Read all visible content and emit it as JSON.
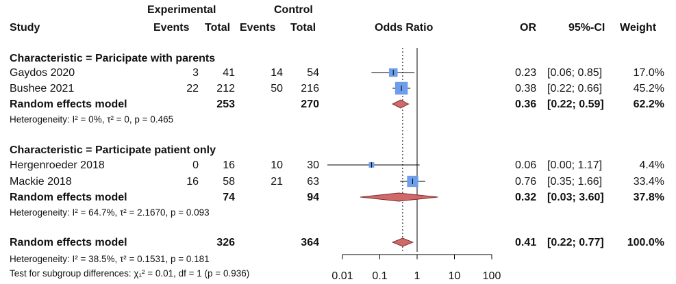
{
  "header": {
    "study": "Study",
    "experimental": "Experimental",
    "control": "Control",
    "events_exp": "Events",
    "total_exp": "Total",
    "events_ctl": "Events",
    "total_ctl": "Total",
    "odds_ratio": "Odds Ratio",
    "or": "OR",
    "ci": "95%-CI",
    "weight": "Weight"
  },
  "rows": [
    {
      "kind": "subgroup",
      "label": "Characteristic = Paricipate with parents"
    },
    {
      "kind": "study",
      "study": "Gaydos 2020",
      "e_ev": "3",
      "e_tot": "41",
      "c_ev": "14",
      "c_tot": "54",
      "or": "0.23",
      "ci": "[0.06; 0.85]",
      "weight": "17.0%"
    },
    {
      "kind": "study",
      "study": "Bushee 2021",
      "e_ev": "22",
      "e_tot": "212",
      "c_ev": "50",
      "c_tot": "216",
      "or": "0.38",
      "ci": "[0.22; 0.66]",
      "weight": "45.2%"
    },
    {
      "kind": "model",
      "study": "Random effects model",
      "e_tot": "253",
      "c_tot": "270",
      "or": "0.36",
      "ci": "[0.22; 0.59]",
      "weight": "62.2%"
    },
    {
      "kind": "het",
      "label": "Heterogeneity: I² = 0%, τ² = 0, p = 0.465"
    },
    {
      "kind": "subgroup",
      "label": "Characteristic = Participate patient only"
    },
    {
      "kind": "study",
      "study": "Hergenroeder 2018",
      "e_ev": "0",
      "e_tot": "16",
      "c_ev": "10",
      "c_tot": "30",
      "or": "0.06",
      "ci": "[0.00; 1.17]",
      "weight": "4.4%"
    },
    {
      "kind": "study",
      "study": "Mackie 2018",
      "e_ev": "16",
      "e_tot": "58",
      "c_ev": "21",
      "c_tot": "63",
      "or": "0.76",
      "ci": "[0.35; 1.66]",
      "weight": "33.4%"
    },
    {
      "kind": "model",
      "study": "Random effects model",
      "e_tot": "74",
      "c_tot": "94",
      "or": "0.32",
      "ci": "[0.03; 3.60]",
      "weight": "37.8%"
    },
    {
      "kind": "het",
      "label": "Heterogeneity: I² = 64.7%, τ² = 2.1670, p = 0.093"
    },
    {
      "kind": "model",
      "study": "Random effects model",
      "e_tot": "326",
      "c_tot": "364",
      "or": "0.41",
      "ci": "[0.22; 0.77]",
      "weight": "100.0%"
    },
    {
      "kind": "het",
      "label": "Heterogeneity: I² = 38.5%, τ² = 0.1531, p = 0.181"
    },
    {
      "kind": "het",
      "label": "Test for subgroup differences: χ₁² = 0.01, df = 1 (p = 0.936)"
    }
  ],
  "chart_data": {
    "type": "forest",
    "x_scale": "log",
    "xlim": [
      0.01,
      100
    ],
    "x_ticks": [
      0.01,
      0.1,
      1,
      10,
      100
    ],
    "x_tick_labels": [
      "0.01",
      "0.1",
      "1",
      "10",
      "100"
    ],
    "reference_line": 1,
    "overall_line": 0.41,
    "studies": [
      {
        "study": "Gaydos 2020",
        "or": 0.23,
        "lo": 0.06,
        "hi": 0.85,
        "weight": 17.0
      },
      {
        "study": "Bushee 2021",
        "or": 0.38,
        "lo": 0.22,
        "hi": 0.66,
        "weight": 45.2
      },
      {
        "study": "Hergenroeder 2018",
        "or": 0.06,
        "lo": 0.0,
        "hi": 1.17,
        "weight": 4.4
      },
      {
        "study": "Mackie 2018",
        "or": 0.76,
        "lo": 0.35,
        "hi": 1.66,
        "weight": 33.4
      }
    ],
    "models": [
      {
        "or": 0.36,
        "lo": 0.22,
        "hi": 0.59,
        "weight": 62.2
      },
      {
        "or": 0.32,
        "lo": 0.03,
        "hi": 3.6,
        "weight": 37.8
      },
      {
        "or": 0.41,
        "lo": 0.22,
        "hi": 0.77,
        "weight": 100.0
      }
    ],
    "colors": {
      "square": "#6d9eeb",
      "diamond": "#d06a6a",
      "line": "#000000"
    }
  }
}
